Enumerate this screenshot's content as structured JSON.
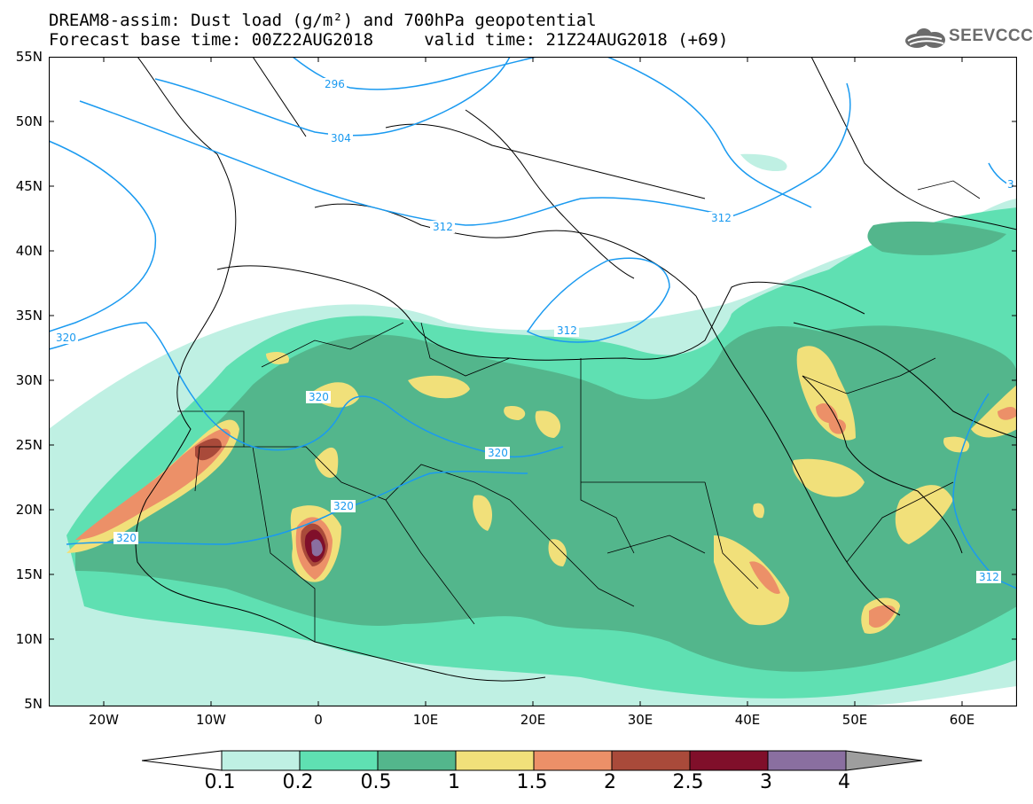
{
  "header": {
    "title_line1": "DREAM8-assim: Dust load (g/m²) and 700hPa geopotential",
    "title_line2": "Forecast base time: 00Z22AUG2018     valid time: 21Z24AUG2018 (+69)"
  },
  "logo": {
    "text": "SEEVCCC",
    "icon": "cloud-icon"
  },
  "map": {
    "lat_labels": [
      "55N",
      "50N",
      "45N",
      "40N",
      "35N",
      "30N",
      "25N",
      "20N",
      "15N",
      "10N",
      "5N"
    ],
    "lon_labels": [
      "20W",
      "10W",
      "0",
      "10E",
      "20E",
      "30E",
      "40E",
      "50E",
      "60E"
    ],
    "contour_labels": [
      "296",
      "304",
      "312",
      "312",
      "312",
      "312",
      "312",
      "320",
      "320",
      "320",
      "320",
      "320",
      "3"
    ],
    "colors": {
      "level_0_1": "#bff0e3",
      "level_0_2": "#5fe0b2",
      "level_0_5": "#53b68c",
      "level_1": "#f1e07a",
      "level_1_5": "#ec9068",
      "level_2": "#a94a3a",
      "level_2_5": "#800f2a",
      "level_3": "#8a6fa0",
      "level_4": "#9e9e9e",
      "contour": "#1a9af0",
      "coast": "#000000"
    }
  },
  "colorbar": {
    "labels": [
      "0.1",
      "0.2",
      "0.5",
      "1",
      "1.5",
      "2",
      "2.5",
      "3",
      "4"
    ],
    "colors": [
      "#bff0e3",
      "#5fe0b2",
      "#53b68c",
      "#f1e07a",
      "#ec9068",
      "#a94a3a",
      "#800f2a",
      "#8a6fa0"
    ]
  }
}
